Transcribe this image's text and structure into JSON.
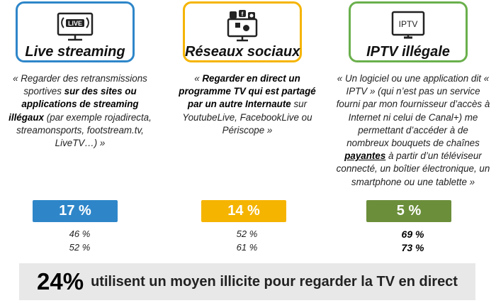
{
  "columns": [
    {
      "title": "Live streaming",
      "icon": "live-monitor-icon",
      "icon_text": "LIVE",
      "border_color": "#2e86c9",
      "bar_color": "#2e86c9",
      "desc_parts": [
        {
          "text": "« Regarder des retransmissions sportives ",
          "bold": false
        },
        {
          "text": "sur des sites ou applications de streaming illégaux",
          "bold": true
        },
        {
          "text": " (par exemple rojadirecta, streamonsports, footstream.tv, LiveTV…) »",
          "bold": false
        }
      ],
      "percent": "17 %",
      "sub1": "46 %",
      "sub2": "52 %"
    },
    {
      "title": "Réseaux sociaux",
      "icon": "social-media-icon",
      "icon_text": "",
      "border_color": "#f5b400",
      "bar_color": "#f5b400",
      "desc_parts": [
        {
          "text": "« ",
          "bold": false
        },
        {
          "text": "Regarder en direct un programme TV qui est partagé par un autre Internaute",
          "bold": true
        },
        {
          "text": " sur YoutubeLive, FacebookLive ou Périscope »",
          "bold": false
        }
      ],
      "percent": "14 %",
      "sub1": "52 %",
      "sub2": "61 %"
    },
    {
      "title": "IPTV illégale",
      "icon": "iptv-tv-icon",
      "icon_text": "IPTV",
      "border_color": "#6ab04c",
      "bar_color": "#6b8e3a",
      "desc_parts": [
        {
          "text": "« Un logiciel ou une application dit « IPTV » (qui n’est pas un service fourni par mon fournisseur d’accès à Internet ni celui de Canal+) me permettant d’accéder à de nombreux bouquets de chaînes ",
          "bold": false
        },
        {
          "text": "payantes",
          "bold": true,
          "underline": true
        },
        {
          "text": " à partir d’un téléviseur connecté, un boîtier électronique, un smartphone ou une tablette »",
          "bold": false
        }
      ],
      "percent": "5 %",
      "sub1": "69 %",
      "sub2": "73 %"
    }
  ],
  "footer": {
    "big": "24%",
    "text": "utilisent un moyen illicite pour regarder la TV en direct"
  }
}
